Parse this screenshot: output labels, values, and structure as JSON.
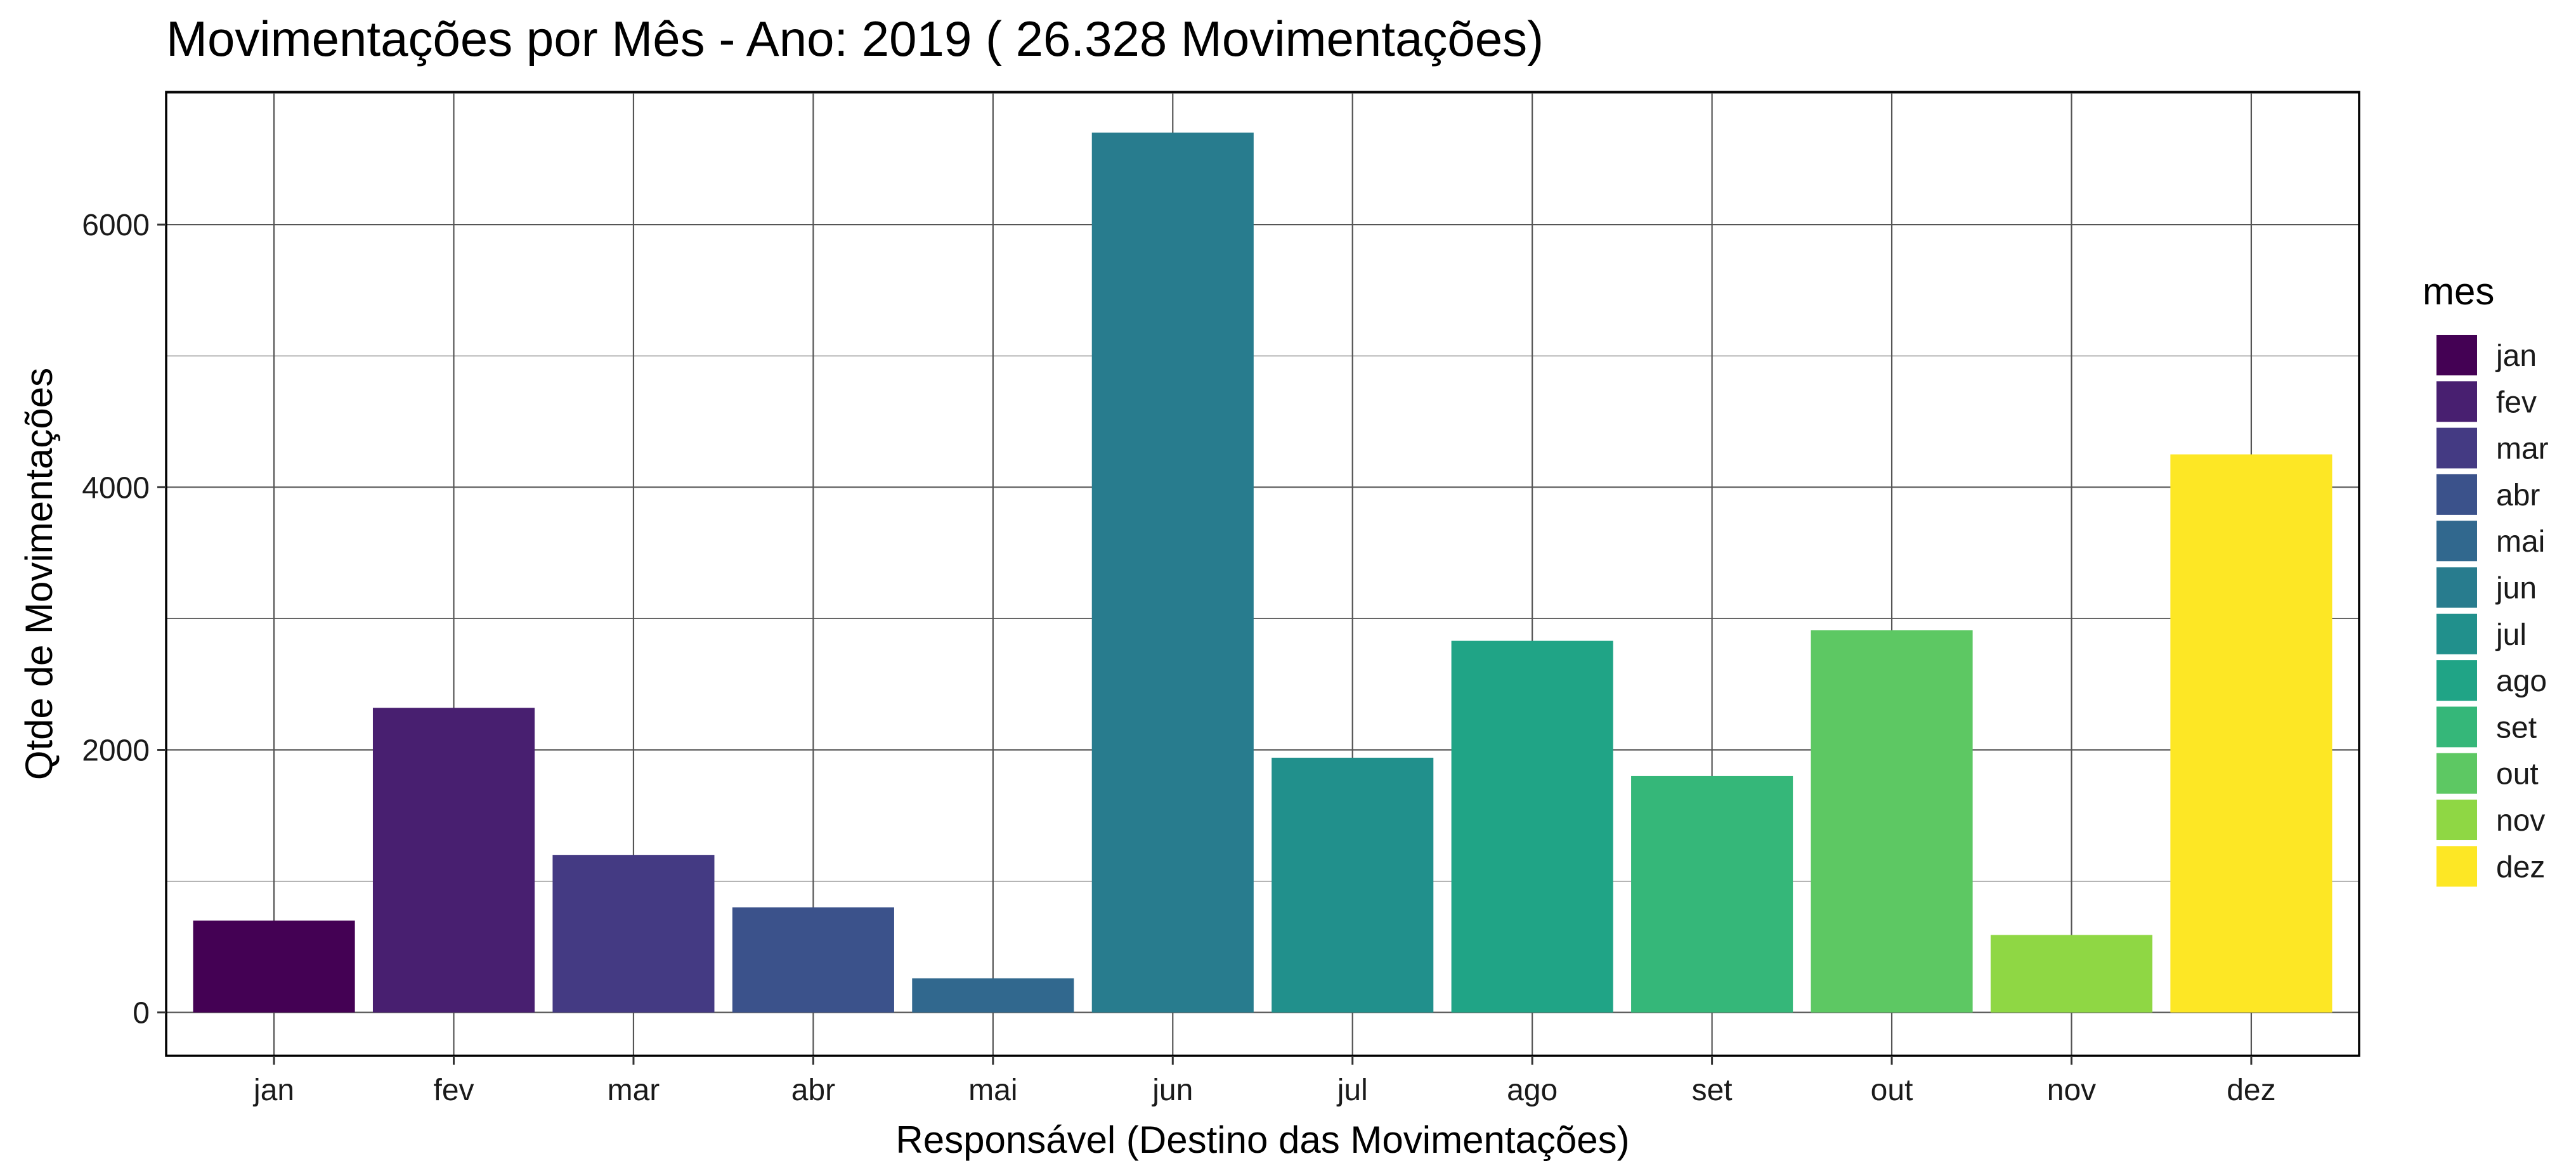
{
  "chart_data": {
    "type": "bar",
    "title": "Movimentações por Mês  - Ano:  2019 ( 26.328  Movimentações)",
    "xlabel": "Responsável (Destino das Movimentações)",
    "ylabel": "Qtde de Movimentações",
    "categories": [
      "jan",
      "fev",
      "mar",
      "abr",
      "mai",
      "jun",
      "jul",
      "ago",
      "set",
      "out",
      "nov",
      "dez"
    ],
    "values": [
      700,
      2320,
      1200,
      800,
      260,
      6700,
      1940,
      2830,
      1800,
      2910,
      590,
      4250
    ],
    "colors": [
      "#440154",
      "#481F70",
      "#443A83",
      "#3B528B",
      "#31688E",
      "#287C8E",
      "#21908C",
      "#20A486",
      "#35B779",
      "#5DC863",
      "#8FD744",
      "#FDE725"
    ],
    "ylim": [
      -330,
      7010
    ],
    "yticks": [
      0,
      2000,
      4000,
      6000
    ],
    "grid": true,
    "legend": {
      "title": "mes",
      "placement": "right",
      "entries": [
        "jan",
        "fev",
        "mar",
        "abr",
        "mai",
        "jun",
        "jul",
        "ago",
        "set",
        "out",
        "nov",
        "dez"
      ]
    }
  }
}
